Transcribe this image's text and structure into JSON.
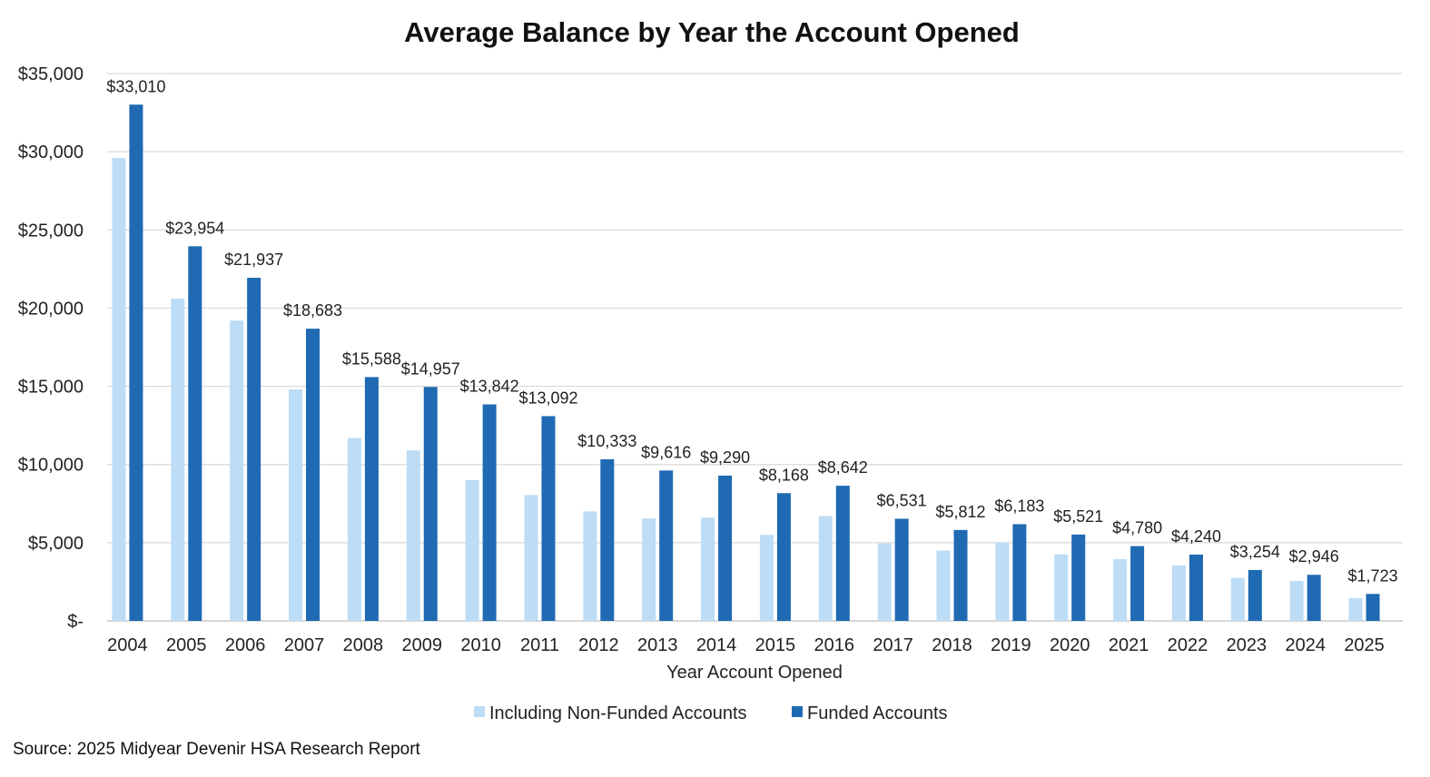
{
  "chart_data": {
    "type": "bar",
    "title": "Average Balance by Year the Account Opened",
    "xlabel": "Year Account Opened",
    "ylabel": "",
    "ylim": [
      0,
      35000
    ],
    "yticks": [
      0,
      5000,
      10000,
      15000,
      20000,
      25000,
      30000,
      35000
    ],
    "ytick_labels": [
      "$-",
      "$5,000",
      "$10,000",
      "$15,000",
      "$20,000",
      "$25,000",
      "$30,000",
      "$35,000"
    ],
    "grid": true,
    "legend_position": "bottom",
    "categories": [
      "2004",
      "2005",
      "2006",
      "2007",
      "2008",
      "2009",
      "2010",
      "2011",
      "2012",
      "2013",
      "2014",
      "2015",
      "2016",
      "2017",
      "2018",
      "2019",
      "2020",
      "2021",
      "2022",
      "2023",
      "2024",
      "2025"
    ],
    "series": [
      {
        "name": "Including Non-Funded Accounts",
        "color": "#bddcf5",
        "values": [
          29600,
          20600,
          19200,
          14800,
          11700,
          10900,
          9000,
          8050,
          7000,
          6550,
          6600,
          5500,
          6700,
          4950,
          4500,
          5000,
          4250,
          3950,
          3550,
          2750,
          2550,
          1450
        ]
      },
      {
        "name": "Funded Accounts",
        "color": "#1f6ab3",
        "values": [
          33010,
          23954,
          21937,
          18683,
          15588,
          14957,
          13842,
          13092,
          10333,
          9616,
          9290,
          8168,
          8642,
          6531,
          5812,
          6183,
          5521,
          4780,
          4240,
          3254,
          2946,
          1723
        ],
        "data_labels": [
          "$33,010",
          "$23,954",
          "$21,937",
          "$18,683",
          "$15,588",
          "$14,957",
          "$13,842",
          "$13,092",
          "$10,333",
          "$9,616",
          "$9,290",
          "$8,168",
          "$8,642",
          "$6,531",
          "$5,812",
          "$6,183",
          "$5,521",
          "$4,780",
          "$4,240",
          "$3,254",
          "$2,946",
          "$1,723"
        ]
      }
    ]
  },
  "footer": {
    "source": "Source: 2025 Midyear Devenir HSA Research Report"
  }
}
